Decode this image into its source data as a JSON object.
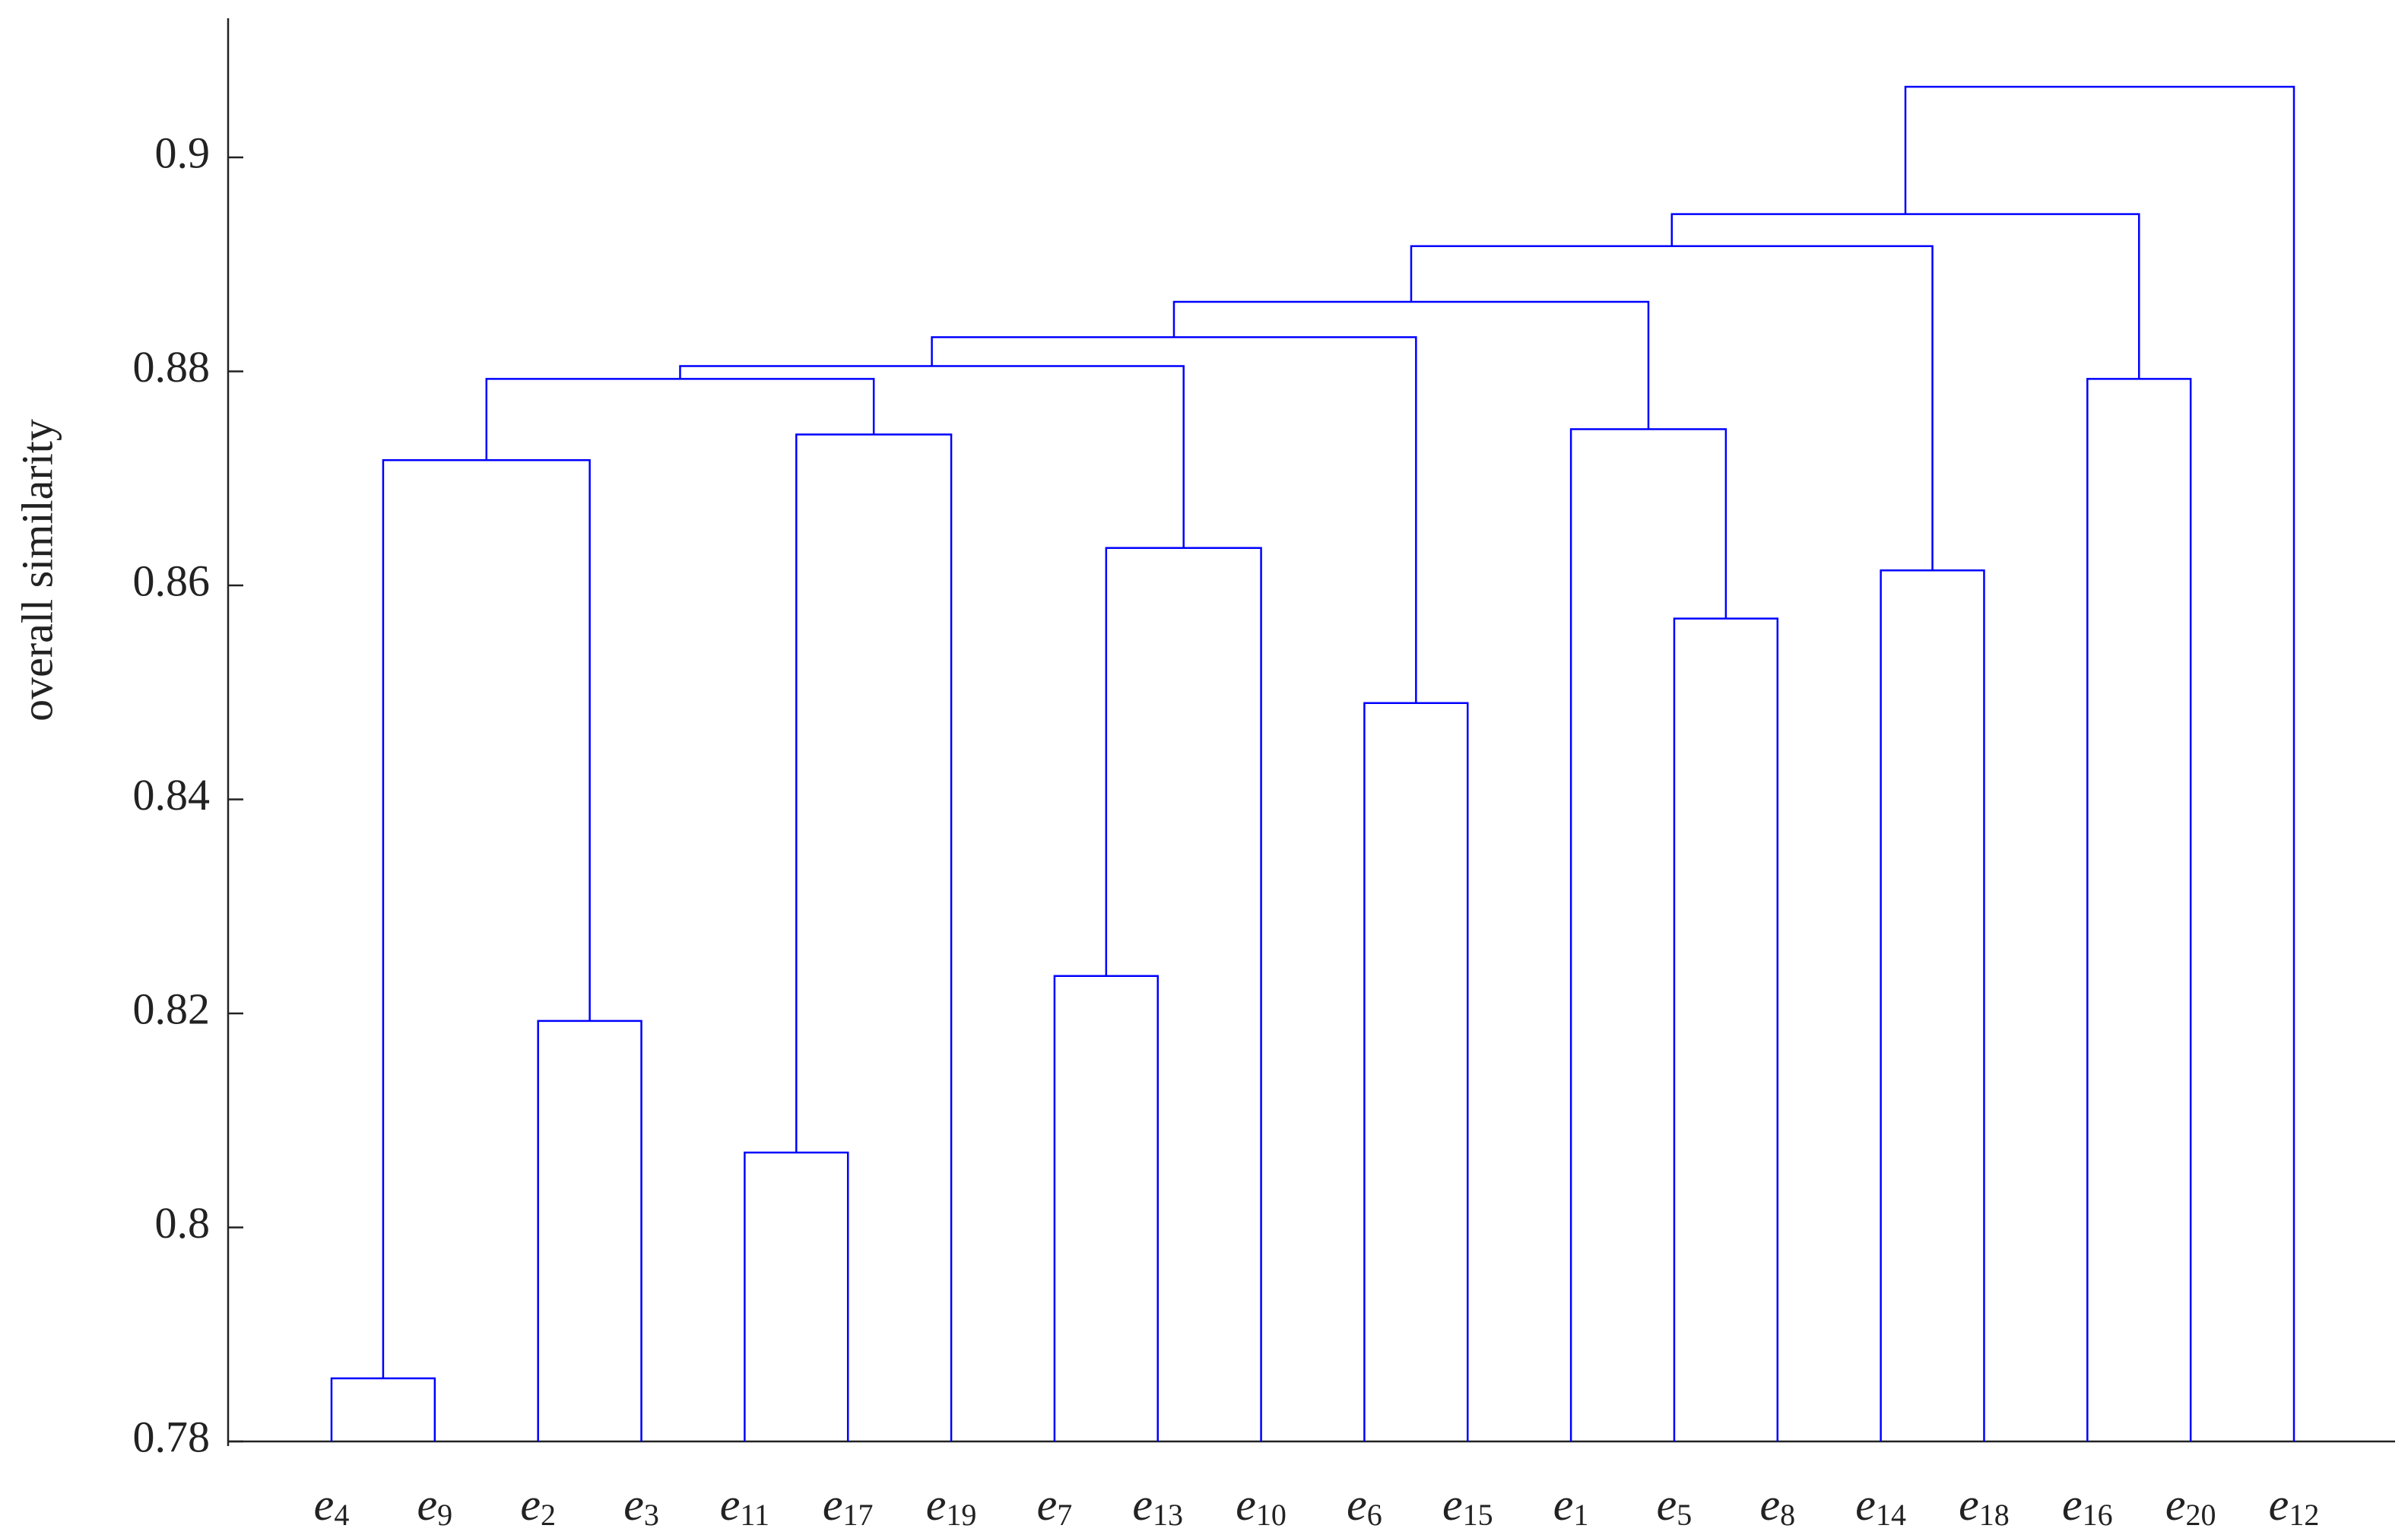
{
  "chart_data": {
    "type": "dendrogram",
    "y_label": "overall similarity",
    "color": "#0000ff",
    "leaves": [
      {
        "text": "e",
        "sub": "4"
      },
      {
        "text": "e",
        "sub": "9"
      },
      {
        "text": "e",
        "sub": "2"
      },
      {
        "text": "e",
        "sub": "3"
      },
      {
        "text": "e",
        "sub": "11"
      },
      {
        "text": "e",
        "sub": "17"
      },
      {
        "text": "e",
        "sub": "19"
      },
      {
        "text": "e",
        "sub": "7"
      },
      {
        "text": "e",
        "sub": "13"
      },
      {
        "text": "e",
        "sub": "10"
      },
      {
        "text": "e",
        "sub": "6"
      },
      {
        "text": "e",
        "sub": "15"
      },
      {
        "text": "e",
        "sub": "1"
      },
      {
        "text": "e",
        "sub": "5"
      },
      {
        "text": "e",
        "sub": "8"
      },
      {
        "text": "e",
        "sub": "14"
      },
      {
        "text": "e",
        "sub": "18"
      },
      {
        "text": "e",
        "sub": "16"
      },
      {
        "text": "e",
        "sub": "20"
      },
      {
        "text": "e",
        "sub": "12"
      }
    ],
    "merges": [
      {
        "children": [
          0,
          1
        ],
        "height": 0.7859
      },
      {
        "children": [
          2,
          3
        ],
        "height": 0.8193
      },
      {
        "children": [
          20,
          21
        ],
        "height": 0.8717
      },
      {
        "children": [
          4,
          5
        ],
        "height": 0.807
      },
      {
        "children": [
          23,
          6
        ],
        "height": 0.8741
      },
      {
        "children": [
          22,
          24
        ],
        "height": 0.8793
      },
      {
        "children": [
          7,
          8
        ],
        "height": 0.8235
      },
      {
        "children": [
          26,
          9
        ],
        "height": 0.8635
      },
      {
        "children": [
          25,
          27
        ],
        "height": 0.8805
      },
      {
        "children": [
          10,
          11
        ],
        "height": 0.849
      },
      {
        "children": [
          28,
          29
        ],
        "height": 0.8832
      },
      {
        "children": [
          13,
          14
        ],
        "height": 0.8569
      },
      {
        "children": [
          12,
          31
        ],
        "height": 0.8746
      },
      {
        "children": [
          30,
          32
        ],
        "height": 0.8865
      },
      {
        "children": [
          15,
          16
        ],
        "height": 0.8614
      },
      {
        "children": [
          33,
          34
        ],
        "height": 0.8917
      },
      {
        "children": [
          17,
          18
        ],
        "height": 0.8793
      },
      {
        "children": [
          35,
          36
        ],
        "height": 0.8947
      },
      {
        "children": [
          37,
          19
        ],
        "height": 0.9066
      }
    ],
    "ylim": [
      0.78,
      0.913
    ],
    "yticks": [
      0.78,
      0.8,
      0.82,
      0.84,
      0.86,
      0.88,
      0.9
    ]
  }
}
